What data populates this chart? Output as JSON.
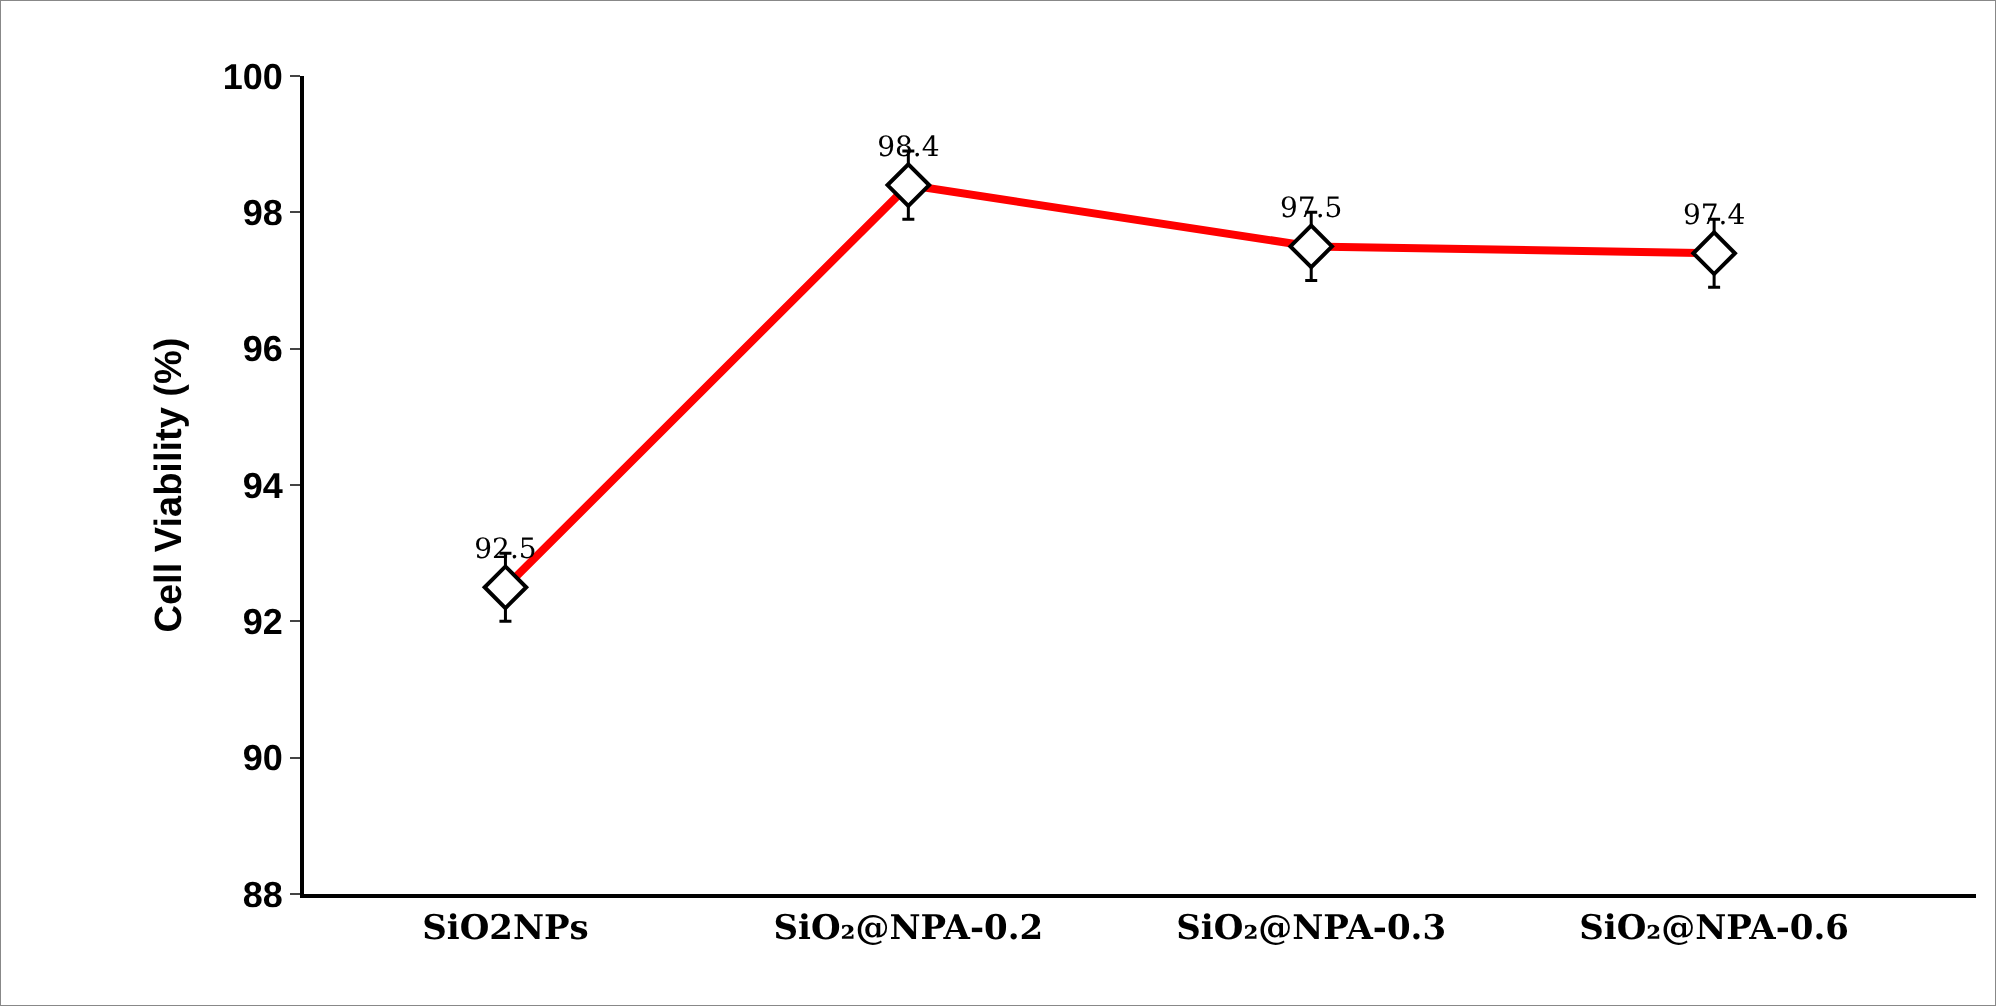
{
  "chart_data": {
    "type": "line",
    "ylabel": "Cell Viability (%)",
    "categories": [
      "SiO2NPs",
      "SiO₂@NPA-0.2",
      "SiO₂@NPA-0.3",
      "SiO₂@NPA-0.6"
    ],
    "series": [
      {
        "color": "#ff0000",
        "values": [
          92.5,
          98.4,
          97.5,
          97.4
        ],
        "errors": [
          0.5,
          0.5,
          0.5,
          0.5
        ]
      }
    ],
    "ylim": [
      88,
      100
    ],
    "yticks": [
      88,
      90,
      92,
      94,
      96,
      98,
      100
    ],
    "data_labels": true,
    "marker": "diamond",
    "line_style": "solid"
  }
}
